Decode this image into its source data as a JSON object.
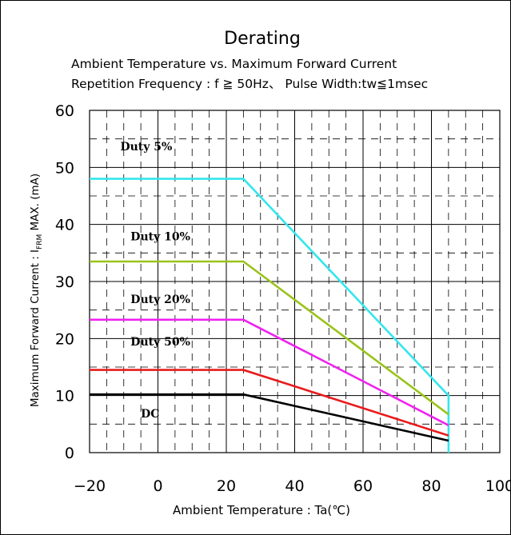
{
  "chart_data": {
    "type": "line",
    "title": "Derating",
    "subtitle_lines": [
      "Ambient Temperature vs. Maximum Forward Current",
      "Repetition Frequency : f ≧ 50Hz、 Pulse Width:tw≦1msec"
    ],
    "xlabel": "Ambient Temperature : Ta(℃)",
    "ylabel": {
      "prefix": "Maximum Forward Current : I",
      "subscript": "FRM",
      "suffix": " MAX. (mA)"
    },
    "xlim": [
      -20,
      100
    ],
    "ylim": [
      0,
      60
    ],
    "x_ticks": [
      "−20",
      "0",
      "20",
      "40",
      "60",
      "80",
      "100"
    ],
    "y_ticks": [
      "0",
      "10",
      "20",
      "30",
      "40",
      "50",
      "60"
    ],
    "grid": true,
    "series": [
      {
        "name": "Duty 5%",
        "color": "#33e6ee",
        "x": [
          -20,
          25,
          85,
          85
        ],
        "y": [
          48,
          48,
          10,
          0
        ]
      },
      {
        "name": "Duty 10%",
        "color": "#99c31a",
        "x": [
          -20,
          25,
          85
        ],
        "y": [
          33.5,
          33.5,
          6.7
        ]
      },
      {
        "name": "Duty 20%",
        "color": "#f022f0",
        "x": [
          -20,
          25,
          85
        ],
        "y": [
          23.3,
          23.3,
          4.8
        ]
      },
      {
        "name": "Duty 50%",
        "color": "#e81c1c",
        "x": [
          -20,
          25,
          85
        ],
        "y": [
          14.5,
          14.5,
          3
        ]
      },
      {
        "name": "DC",
        "color": "#000000",
        "x": [
          -20,
          25,
          85
        ],
        "y": [
          10.2,
          10.2,
          2.1
        ]
      }
    ]
  }
}
